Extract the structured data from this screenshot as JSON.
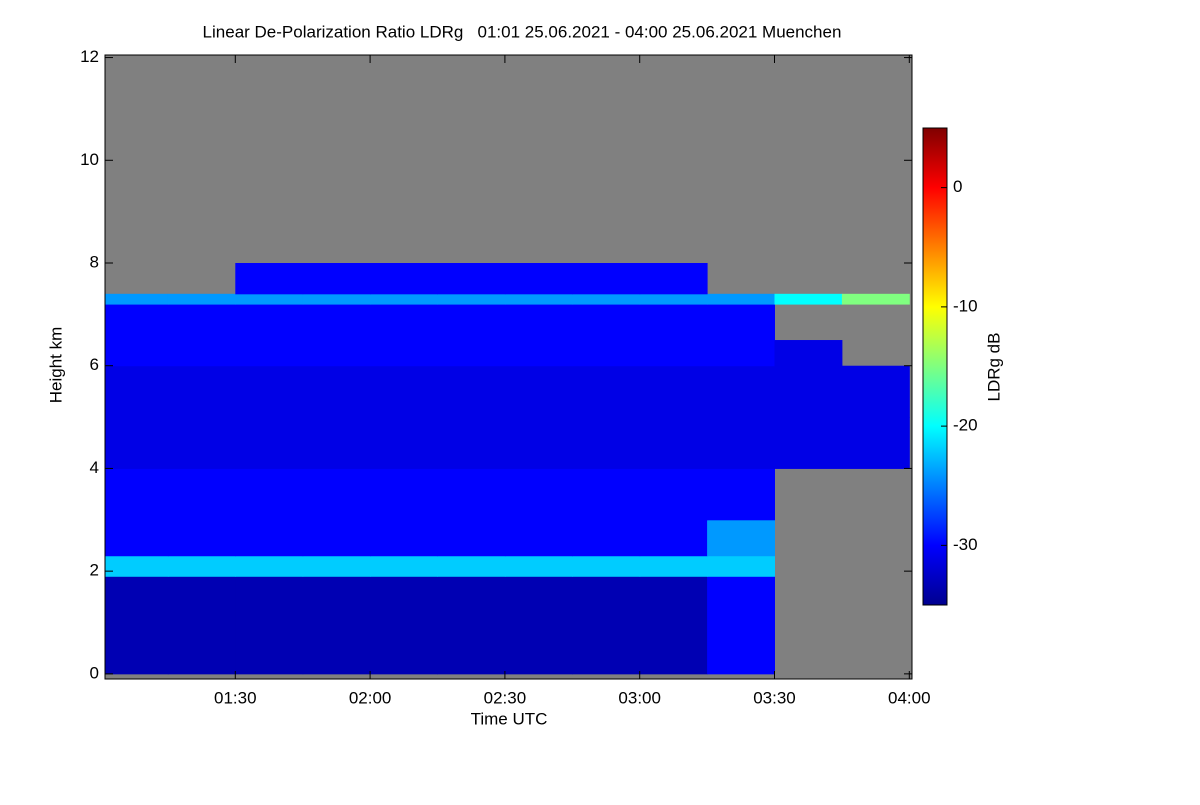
{
  "chart_data": {
    "type": "heatmap",
    "title": "Linear De-Polarization Ratio LDRg   01:01 25.06.2021 - 04:00 25.06.2021 Muenchen",
    "xlabel": "Time UTC",
    "ylabel": "Height km",
    "colorbar_label": "LDRg dB",
    "xlim": [
      1.0167,
      4.01
    ],
    "ylim": [
      -0.1,
      12.05
    ],
    "xticks": [
      {
        "value": 1.5,
        "label": "01:30"
      },
      {
        "value": 2,
        "label": "02:00"
      },
      {
        "value": 2.5,
        "label": "02:30"
      },
      {
        "value": 3,
        "label": "03:00"
      },
      {
        "value": 3.5,
        "label": "03:30"
      },
      {
        "value": 4,
        "label": "04:00"
      }
    ],
    "yticks": [
      0,
      2,
      4,
      6,
      8,
      10,
      12
    ],
    "clim": [
      -35,
      5
    ],
    "zticks": [
      -30,
      -20,
      -10,
      0
    ],
    "background": "#808080",
    "xbins": [
      1.0167,
      1.25,
      1.5,
      1.75,
      2,
      2.25,
      2.5,
      2.75,
      3,
      3.25,
      3.5,
      3.75,
      4.0
    ],
    "ybins": [
      0,
      1.9,
      2.3,
      3,
      4,
      5,
      6,
      6.5,
      7.2,
      7.4,
      8,
      12
    ],
    "z": [
      [
        -33,
        -33,
        -33,
        -33,
        -33,
        -33,
        -33,
        -33,
        -33,
        -30,
        null,
        null
      ],
      [
        -22,
        -22,
        -22,
        -22,
        -22,
        -22,
        -22,
        -22,
        -22,
        -22,
        null,
        null
      ],
      [
        -30,
        -30,
        -30,
        -30,
        -30,
        -30,
        -30,
        -30,
        -30,
        -24,
        null,
        null
      ],
      [
        -30,
        -30,
        -30,
        -30,
        -30,
        -30,
        -30,
        -30,
        -30,
        -30,
        null,
        null
      ],
      [
        -31,
        -31,
        -31,
        -31,
        -31,
        -31,
        -31,
        -31,
        -31,
        -31,
        -31,
        -31
      ],
      [
        -31,
        -31,
        -31,
        -31,
        -31,
        -31,
        -31,
        -31,
        -31,
        -31,
        -31,
        -31
      ],
      [
        -30,
        -30,
        -30,
        -30,
        -30,
        -30,
        -30,
        -30,
        -30,
        -30,
        -31,
        null
      ],
      [
        -30,
        -30,
        -30,
        -30,
        -30,
        -30,
        -30,
        -30,
        -30,
        -30,
        null,
        null
      ],
      [
        -24,
        -24,
        -24,
        -24,
        -24,
        -24,
        -24,
        -24,
        -24,
        -24,
        -20,
        -15
      ],
      [
        null,
        null,
        -30,
        -30,
        -30,
        -30,
        -30,
        -30,
        -30,
        null,
        null,
        null
      ],
      [
        null,
        null,
        null,
        null,
        null,
        null,
        null,
        null,
        null,
        null,
        null,
        null
      ]
    ]
  }
}
